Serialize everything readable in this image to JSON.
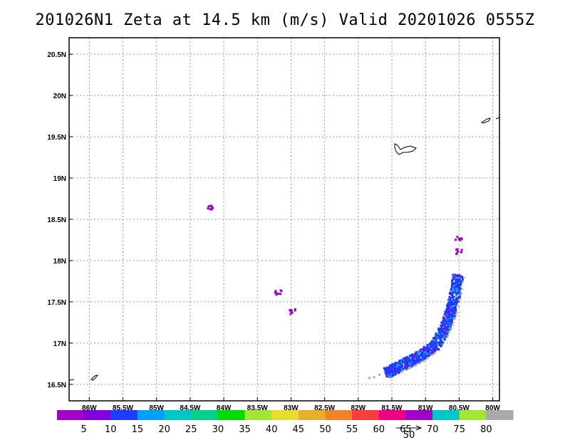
{
  "title": "201026N1 Zeta at 14.5 km (m/s) Valid 20201026 0555Z",
  "map": {
    "lon_range": [
      -86.3,
      -79.9
    ],
    "lat_range": [
      16.3,
      20.7
    ],
    "lat_ticks": [
      {
        "value": 20.5,
        "label": "20.5N"
      },
      {
        "value": 20.0,
        "label": "20N"
      },
      {
        "value": 19.5,
        "label": "19.5N"
      },
      {
        "value": 19.0,
        "label": "19N"
      },
      {
        "value": 18.5,
        "label": "18.5N"
      },
      {
        "value": 18.0,
        "label": "18N"
      },
      {
        "value": 17.5,
        "label": "17.5N"
      },
      {
        "value": 17.0,
        "label": "17N"
      },
      {
        "value": 16.5,
        "label": "16.5N"
      }
    ],
    "lon_ticks": [
      {
        "value": -86.0,
        "label": "86W"
      },
      {
        "value": -85.5,
        "label": "85.5W"
      },
      {
        "value": -85.0,
        "label": "85W"
      },
      {
        "value": -84.5,
        "label": "84.5W"
      },
      {
        "value": -84.0,
        "label": "84W"
      },
      {
        "value": -83.5,
        "label": "83.5W"
      },
      {
        "value": -83.0,
        "label": "83W"
      },
      {
        "value": -82.5,
        "label": "82.5W"
      },
      {
        "value": -82.0,
        "label": "82W"
      },
      {
        "value": -81.5,
        "label": "81.5W"
      },
      {
        "value": -81.0,
        "label": "81W"
      },
      {
        "value": -80.5,
        "label": "80.5W"
      },
      {
        "value": -80.0,
        "label": "80W"
      }
    ],
    "gridlines": "dotted",
    "rainband_track": [
      {
        "lon": -81.6,
        "lat": 16.65
      },
      {
        "lon": -81.35,
        "lat": 16.75
      },
      {
        "lon": -81.1,
        "lat": 16.85
      },
      {
        "lon": -80.85,
        "lat": 17.0
      },
      {
        "lon": -80.7,
        "lat": 17.25
      },
      {
        "lon": -80.6,
        "lat": 17.5
      },
      {
        "lon": -80.53,
        "lat": 17.85
      }
    ],
    "speckles": [
      {
        "lon": -84.2,
        "lat": 18.65,
        "color": "#9f00c8"
      },
      {
        "lon": -83.2,
        "lat": 17.62,
        "color": "#9f00c8"
      },
      {
        "lon": -83.0,
        "lat": 17.4,
        "color": "#9f00c8"
      },
      {
        "lon": -80.52,
        "lat": 18.27,
        "color": "#9f00c8"
      },
      {
        "lon": -80.51,
        "lat": 18.12,
        "color": "#9f00c8"
      }
    ]
  },
  "colorbar": {
    "labels": [
      "5",
      "10",
      "15",
      "20",
      "25",
      "30",
      "35",
      "40",
      "45",
      "50",
      "55",
      "60",
      "65",
      "70",
      "75",
      "80"
    ],
    "colors": [
      "#a000c8",
      "#8200dc",
      "#1e3cff",
      "#00a0ff",
      "#00c8c8",
      "#00d28c",
      "#00dc00",
      "#a0e632",
      "#e6dc32",
      "#e6af2d",
      "#f08228",
      "#fa3c3c",
      "#f00082",
      "#a000c8",
      "#00c8c8",
      "#a0e632",
      "#aaaaaa"
    ],
    "vector_scale_label": "50"
  }
}
